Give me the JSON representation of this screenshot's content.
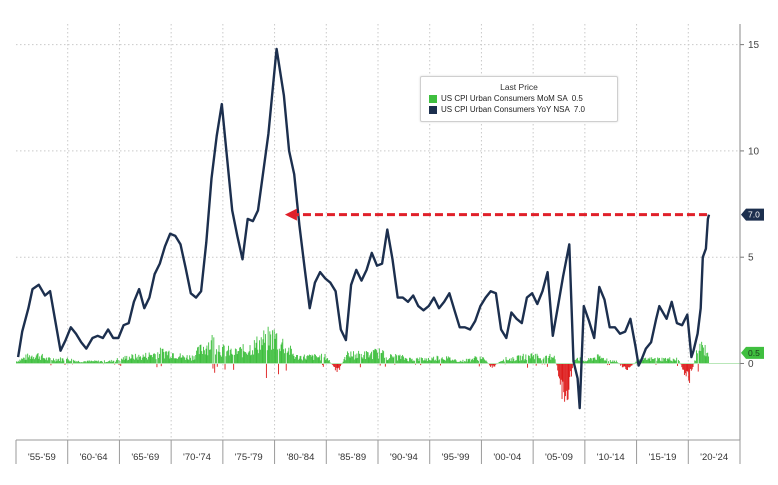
{
  "chart_data": {
    "type": "line",
    "title": "",
    "xlabel": "",
    "ylabel": "",
    "ylim": [
      -3.6,
      15.5
    ],
    "yticks": [
      0,
      5,
      10,
      15
    ],
    "y_axis_side": "right",
    "grid": true,
    "x_periods": [
      "'55-'59",
      "'60-'64",
      "'65-'69",
      "'70-'74",
      "'75-'79",
      "'80-'84",
      "'85-'89",
      "'90-'94",
      "'95-'99",
      "'00-'04",
      "'05-'09",
      "'10-'14",
      "'15-'19",
      "'20-'24"
    ],
    "legend": {
      "title": "Last Price",
      "placement": "top-right"
    },
    "series": [
      {
        "name": "US CPI Urban Consumers MoM SA",
        "last_value": "0.5",
        "color": "#3fbf3f",
        "negative_color": "#dd1a1a",
        "style": "bars",
        "points": [
          [
            1955,
            0.1
          ],
          [
            1956,
            0.3
          ],
          [
            1957,
            0.4
          ],
          [
            1958,
            0.2
          ],
          [
            1959,
            0.2
          ],
          [
            1960,
            0.2
          ],
          [
            1961,
            0.1
          ],
          [
            1962,
            0.1
          ],
          [
            1963,
            0.1
          ],
          [
            1964,
            0.1
          ],
          [
            1965,
            0.2
          ],
          [
            1966,
            0.3
          ],
          [
            1967,
            0.3
          ],
          [
            1968,
            0.4
          ],
          [
            1969,
            0.5
          ],
          [
            1970,
            0.5
          ],
          [
            1971,
            0.3
          ],
          [
            1972,
            0.3
          ],
          [
            1973,
            0.7
          ],
          [
            1974,
            1.0
          ],
          [
            1975,
            0.6
          ],
          [
            1976,
            0.5
          ],
          [
            1977,
            0.6
          ],
          [
            1978,
            0.8
          ],
          [
            1979,
            1.1
          ],
          [
            1980,
            1.2
          ],
          [
            1981,
            0.8
          ],
          [
            1982,
            0.3
          ],
          [
            1983,
            0.3
          ],
          [
            1984,
            0.3
          ],
          [
            1985,
            0.3
          ],
          [
            1986,
            -0.4
          ],
          [
            1987,
            0.4
          ],
          [
            1988,
            0.4
          ],
          [
            1989,
            0.4
          ],
          [
            1990,
            0.5
          ],
          [
            1991,
            0.3
          ],
          [
            1992,
            0.3
          ],
          [
            1993,
            0.2
          ],
          [
            1994,
            0.2
          ],
          [
            1995,
            0.2
          ],
          [
            1996,
            0.3
          ],
          [
            1997,
            0.2
          ],
          [
            1998,
            0.1
          ],
          [
            1999,
            0.2
          ],
          [
            2000,
            0.3
          ],
          [
            2001,
            -0.2
          ],
          [
            2002,
            0.2
          ],
          [
            2003,
            0.2
          ],
          [
            2004,
            0.3
          ],
          [
            2005,
            0.4
          ],
          [
            2006,
            0.2
          ],
          [
            2007,
            0.4
          ],
          [
            2008,
            -1.8
          ],
          [
            2009,
            0.3
          ],
          [
            2010,
            0.1
          ],
          [
            2011,
            0.3
          ],
          [
            2012,
            0.2
          ],
          [
            2013,
            0.1
          ],
          [
            2014,
            -0.3
          ],
          [
            2015,
            0.1
          ],
          [
            2016,
            0.2
          ],
          [
            2017,
            0.2
          ],
          [
            2018,
            0.2
          ],
          [
            2019,
            0.2
          ],
          [
            2020,
            -0.8
          ],
          [
            2021,
            0.8
          ],
          [
            2022,
            0.5
          ]
        ]
      },
      {
        "name": "US CPI Urban Consumers YoY NSA",
        "last_value": "7.0",
        "color": "#1c2f4e",
        "style": "line",
        "points": [
          [
            1955.2,
            0.3
          ],
          [
            1955.6,
            1.5
          ],
          [
            1956.2,
            2.6
          ],
          [
            1956.6,
            3.5
          ],
          [
            1957.2,
            3.7
          ],
          [
            1957.8,
            3.2
          ],
          [
            1958.3,
            3.4
          ],
          [
            1958.8,
            2.0
          ],
          [
            1959.3,
            0.6
          ],
          [
            1959.8,
            1.1
          ],
          [
            1960.3,
            1.7
          ],
          [
            1960.8,
            1.4
          ],
          [
            1961.3,
            1.0
          ],
          [
            1961.8,
            0.7
          ],
          [
            1962.4,
            1.2
          ],
          [
            1962.9,
            1.3
          ],
          [
            1963.4,
            1.2
          ],
          [
            1963.9,
            1.6
          ],
          [
            1964.4,
            1.2
          ],
          [
            1964.9,
            1.2
          ],
          [
            1965.4,
            1.8
          ],
          [
            1965.9,
            1.9
          ],
          [
            1966.4,
            2.9
          ],
          [
            1966.9,
            3.5
          ],
          [
            1967.4,
            2.6
          ],
          [
            1967.9,
            3.1
          ],
          [
            1968.4,
            4.2
          ],
          [
            1968.9,
            4.7
          ],
          [
            1969.4,
            5.5
          ],
          [
            1969.9,
            6.1
          ],
          [
            1970.4,
            6.0
          ],
          [
            1970.9,
            5.6
          ],
          [
            1971.4,
            4.5
          ],
          [
            1971.9,
            3.3
          ],
          [
            1972.4,
            3.1
          ],
          [
            1972.9,
            3.4
          ],
          [
            1973.4,
            5.7
          ],
          [
            1973.9,
            8.7
          ],
          [
            1974.4,
            10.7
          ],
          [
            1974.9,
            12.2
          ],
          [
            1975.4,
            9.7
          ],
          [
            1975.9,
            7.2
          ],
          [
            1976.4,
            6.0
          ],
          [
            1976.9,
            4.9
          ],
          [
            1977.4,
            6.8
          ],
          [
            1977.9,
            6.7
          ],
          [
            1978.4,
            7.2
          ],
          [
            1978.9,
            9.0
          ],
          [
            1979.4,
            10.8
          ],
          [
            1979.9,
            13.3
          ],
          [
            1980.2,
            14.8
          ],
          [
            1980.9,
            12.6
          ],
          [
            1981.4,
            10.0
          ],
          [
            1981.9,
            8.9
          ],
          [
            1982.4,
            6.5
          ],
          [
            1982.9,
            4.5
          ],
          [
            1983.4,
            2.6
          ],
          [
            1983.9,
            3.8
          ],
          [
            1984.4,
            4.3
          ],
          [
            1984.9,
            4.0
          ],
          [
            1985.4,
            3.8
          ],
          [
            1985.9,
            3.4
          ],
          [
            1986.4,
            1.6
          ],
          [
            1986.9,
            1.1
          ],
          [
            1987.4,
            3.7
          ],
          [
            1987.9,
            4.4
          ],
          [
            1988.4,
            3.9
          ],
          [
            1988.9,
            4.4
          ],
          [
            1989.4,
            5.2
          ],
          [
            1989.9,
            4.6
          ],
          [
            1990.4,
            4.7
          ],
          [
            1990.9,
            6.3
          ],
          [
            1991.4,
            4.9
          ],
          [
            1991.9,
            3.1
          ],
          [
            1992.4,
            3.1
          ],
          [
            1992.9,
            2.9
          ],
          [
            1993.4,
            3.2
          ],
          [
            1993.9,
            2.7
          ],
          [
            1994.4,
            2.5
          ],
          [
            1994.9,
            2.7
          ],
          [
            1995.4,
            3.1
          ],
          [
            1995.9,
            2.6
          ],
          [
            1996.4,
            2.9
          ],
          [
            1996.9,
            3.3
          ],
          [
            1997.4,
            2.5
          ],
          [
            1997.9,
            1.7
          ],
          [
            1998.4,
            1.7
          ],
          [
            1998.9,
            1.6
          ],
          [
            1999.4,
            2.0
          ],
          [
            1999.9,
            2.7
          ],
          [
            2000.4,
            3.1
          ],
          [
            2000.9,
            3.4
          ],
          [
            2001.4,
            3.3
          ],
          [
            2001.9,
            1.6
          ],
          [
            2002.4,
            1.2
          ],
          [
            2002.9,
            2.4
          ],
          [
            2003.4,
            2.1
          ],
          [
            2003.9,
            1.9
          ],
          [
            2004.4,
            3.1
          ],
          [
            2004.9,
            3.3
          ],
          [
            2005.4,
            2.8
          ],
          [
            2005.9,
            3.4
          ],
          [
            2006.4,
            4.3
          ],
          [
            2006.9,
            1.3
          ],
          [
            2007.4,
            2.7
          ],
          [
            2007.9,
            4.1
          ],
          [
            2008.5,
            5.6
          ],
          [
            2008.9,
            0.1
          ],
          [
            2009.3,
            -0.7
          ],
          [
            2009.5,
            -2.1
          ],
          [
            2009.9,
            2.7
          ],
          [
            2010.4,
            2.0
          ],
          [
            2010.9,
            1.2
          ],
          [
            2011.4,
            3.6
          ],
          [
            2011.9,
            3.0
          ],
          [
            2012.4,
            1.7
          ],
          [
            2012.9,
            1.7
          ],
          [
            2013.4,
            1.4
          ],
          [
            2013.9,
            1.5
          ],
          [
            2014.4,
            2.1
          ],
          [
            2014.9,
            0.8
          ],
          [
            2015.2,
            -0.1
          ],
          [
            2015.5,
            0.2
          ],
          [
            2015.9,
            0.7
          ],
          [
            2016.4,
            1.0
          ],
          [
            2016.9,
            2.1
          ],
          [
            2017.2,
            2.7
          ],
          [
            2017.9,
            2.1
          ],
          [
            2018.4,
            2.9
          ],
          [
            2018.9,
            1.9
          ],
          [
            2019.4,
            1.8
          ],
          [
            2019.9,
            2.3
          ],
          [
            2020.3,
            0.3
          ],
          [
            2020.5,
            0.6
          ],
          [
            2020.9,
            1.4
          ],
          [
            2021.2,
            2.6
          ],
          [
            2021.4,
            5.0
          ],
          [
            2021.7,
            5.4
          ],
          [
            2021.9,
            6.8
          ],
          [
            2022.0,
            7.0
          ]
        ]
      }
    ],
    "annotations": [
      {
        "type": "dashed-arrow",
        "color": "#e0202a",
        "y": 7.0,
        "x_from": 2022.0,
        "x_to": 1981.0
      }
    ]
  }
}
